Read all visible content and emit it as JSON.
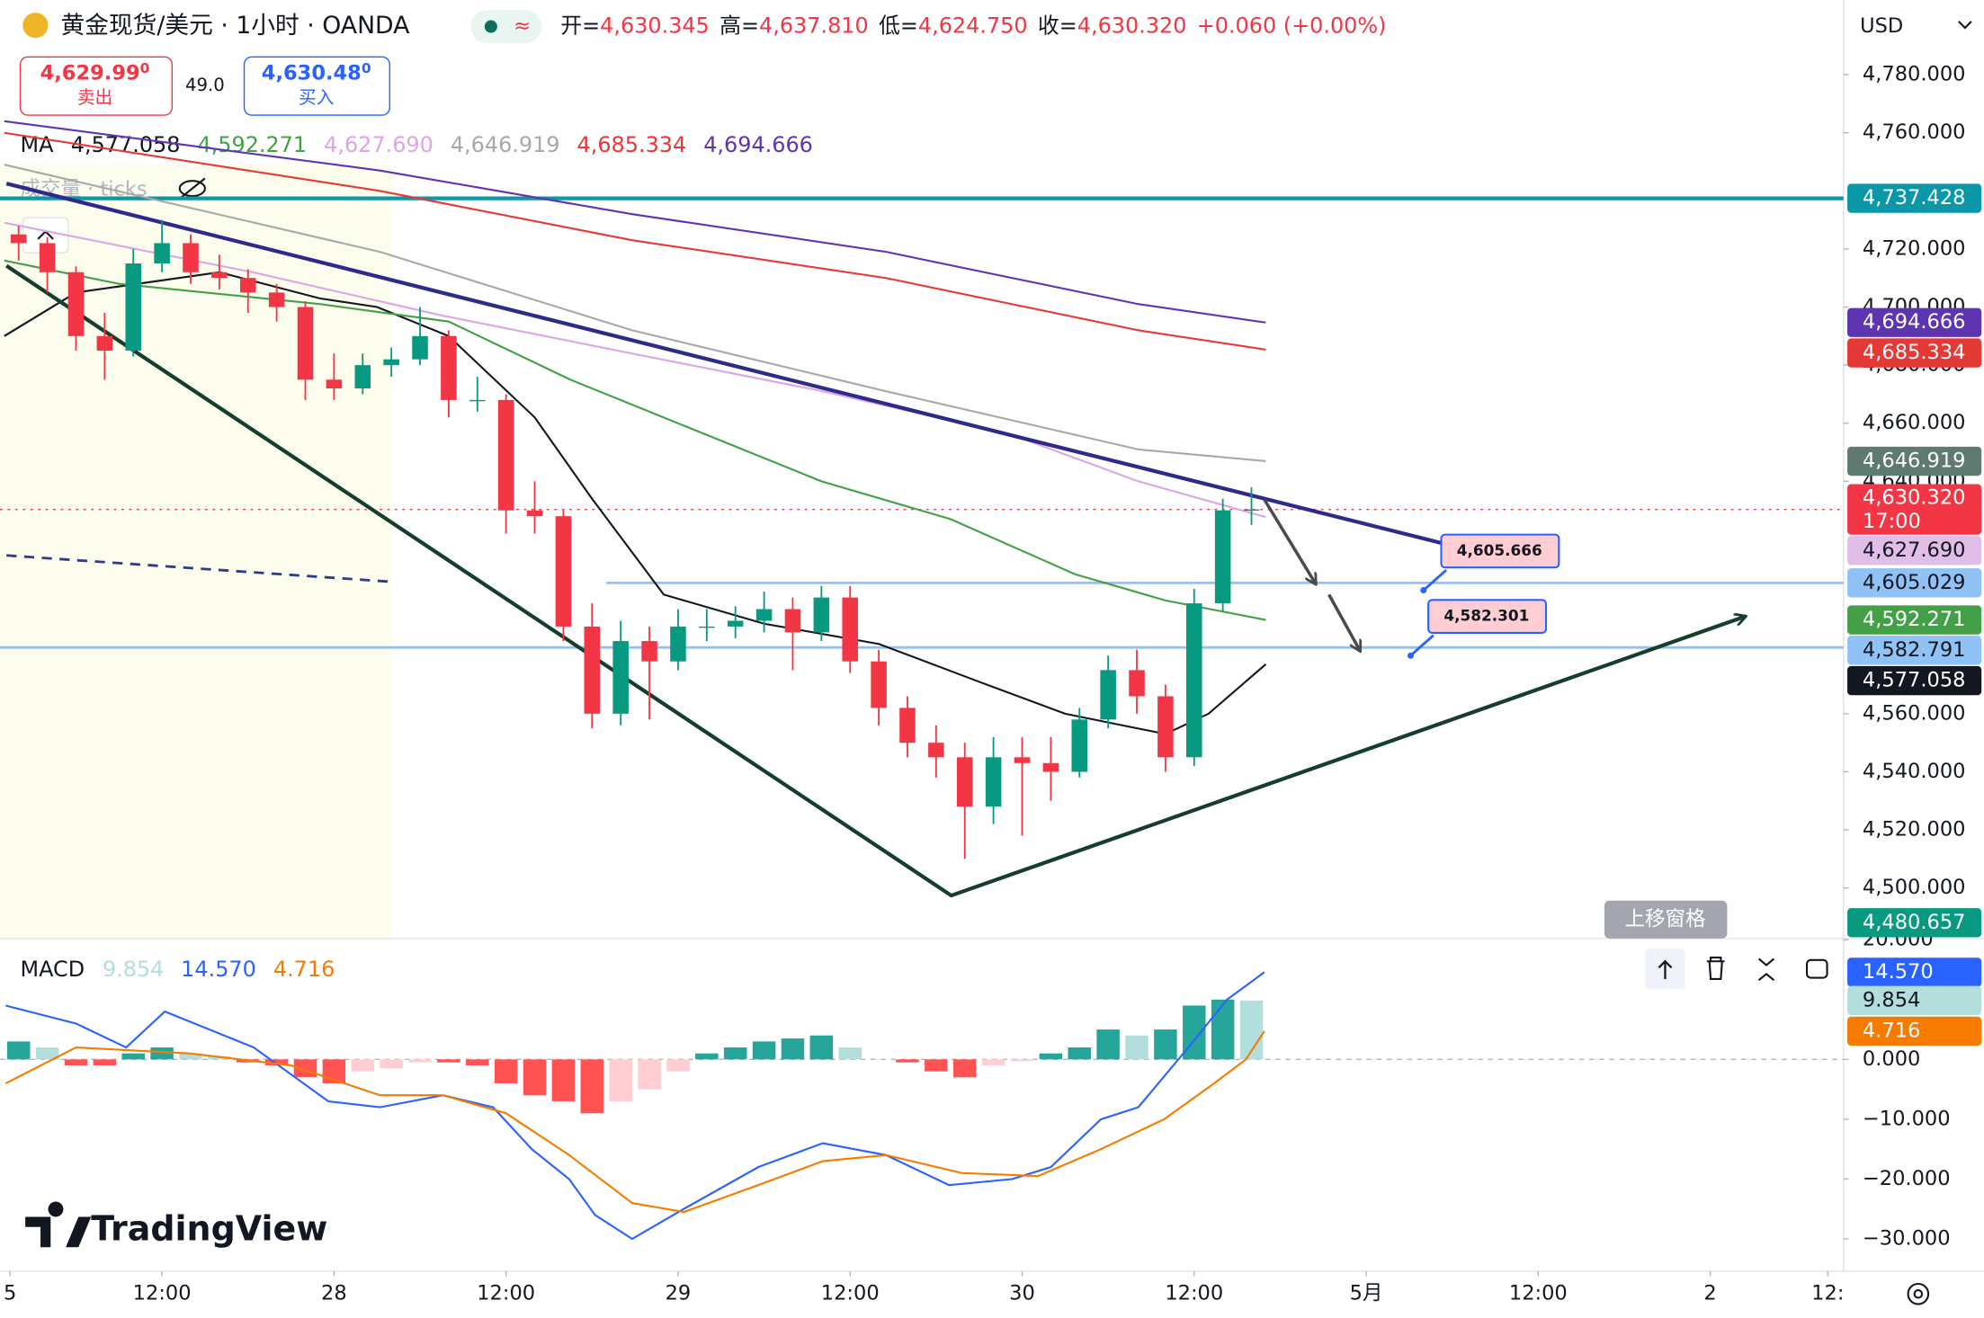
{
  "chart_data": {
    "type": "candlestick",
    "title": "黄金现货/美元 · 1小时 · OANDA",
    "legend": {
      "labels": [
        "开=",
        "高=",
        "低=",
        "收="
      ],
      "values": [
        "4,630.345",
        "4,637.810",
        "4,624.750",
        "4,630.320"
      ],
      "change": "+0.060 (+0.00%)",
      "color": "#f23645"
    },
    "quote": {
      "sell": "4,629.99",
      "sell_frac": "0",
      "sell_label": "卖出",
      "spread": "49.0",
      "buy": "4,630.48",
      "buy_frac": "0",
      "buy_label": "买入"
    },
    "currency": "USD",
    "volume_label": "成交量 · ticks",
    "up_color": "#089981",
    "down_color": "#f23645",
    "x": [
      2,
      4,
      6,
      8,
      10,
      12,
      14,
      16,
      18,
      20,
      22,
      24,
      26,
      28,
      30,
      32,
      34,
      36,
      38,
      40,
      42,
      44,
      46,
      48,
      50,
      52,
      54,
      56,
      58,
      60,
      62,
      64,
      66,
      68,
      70,
      72,
      74,
      76,
      78,
      80,
      82,
      84,
      86,
      88
    ],
    "candles": [
      [
        4725,
        4728,
        4716,
        4722
      ],
      [
        4722,
        4724,
        4705,
        4712
      ],
      [
        4712,
        4714,
        4685,
        4690
      ],
      [
        4690,
        4698,
        4675,
        4685
      ],
      [
        4685,
        4720,
        4683,
        4715
      ],
      [
        4715,
        4730,
        4712,
        4722
      ],
      [
        4722,
        4725,
        4708,
        4712
      ],
      [
        4712,
        4718,
        4706,
        4710
      ],
      [
        4710,
        4713,
        4698,
        4705
      ],
      [
        4705,
        4708,
        4695,
        4700
      ],
      [
        4700,
        4702,
        4668,
        4675
      ],
      [
        4675,
        4684,
        4668,
        4672
      ],
      [
        4672,
        4684,
        4670,
        4680
      ],
      [
        4680,
        4686,
        4676,
        4682
      ],
      [
        4682,
        4700,
        4680,
        4690
      ],
      [
        4690,
        4692,
        4662,
        4668
      ],
      [
        4668,
        4676,
        4664,
        4668
      ],
      [
        4668,
        4670,
        4622,
        4630
      ],
      [
        4630,
        4640,
        4622,
        4628
      ],
      [
        4628,
        4630,
        4585,
        4590
      ],
      [
        4590,
        4598,
        4555,
        4560
      ],
      [
        4560,
        4592,
        4556,
        4585
      ],
      [
        4585,
        4590,
        4558,
        4578
      ],
      [
        4578,
        4596,
        4575,
        4590
      ],
      [
        4590,
        4596,
        4585,
        4590
      ],
      [
        4590,
        4597,
        4586,
        4592
      ],
      [
        4592,
        4602,
        4588,
        4596
      ],
      [
        4596,
        4600,
        4575,
        4588
      ],
      [
        4588,
        4604,
        4585,
        4600
      ],
      [
        4600,
        4604,
        4574,
        4578
      ],
      [
        4578,
        4582,
        4556,
        4562
      ],
      [
        4562,
        4566,
        4545,
        4550
      ],
      [
        4550,
        4556,
        4538,
        4545
      ],
      [
        4545,
        4550,
        4510,
        4528
      ],
      [
        4528,
        4552,
        4522,
        4545
      ],
      [
        4545,
        4552,
        4518,
        4543
      ],
      [
        4543,
        4552,
        4530,
        4540
      ],
      [
        4540,
        4562,
        4538,
        4558
      ],
      [
        4558,
        4580,
        4555,
        4575
      ],
      [
        4575,
        4582,
        4560,
        4566
      ],
      [
        4566,
        4570,
        4540,
        4545
      ],
      [
        4545,
        4603,
        4542,
        4598
      ],
      [
        4598,
        4634,
        4595,
        4630
      ],
      [
        4630,
        4638,
        4625,
        4630.32
      ]
    ],
    "xlim": [
      0.7,
      129.3
    ],
    "xticks": [
      {
        "value": 1.4,
        "label": "5"
      },
      {
        "value": 12,
        "label": "12:00"
      },
      {
        "value": 24,
        "label": "28"
      },
      {
        "value": 36,
        "label": "12:00"
      },
      {
        "value": 48,
        "label": "29"
      },
      {
        "value": 60,
        "label": "12:00"
      },
      {
        "value": 72,
        "label": "30"
      },
      {
        "value": 84,
        "label": "12:00"
      },
      {
        "value": 96,
        "label": "5月"
      },
      {
        "value": 108,
        "label": "12:00"
      },
      {
        "value": 120,
        "label": "2"
      },
      {
        "value": 128.2,
        "label": "12:"
      }
    ],
    "ylim": [
      4482.6,
      4805.7
    ],
    "yticks": [
      {
        "value": 4500,
        "label": "4,500.000"
      },
      {
        "value": 4520,
        "label": "4,520.000"
      },
      {
        "value": 4540,
        "label": "4,540.000"
      },
      {
        "value": 4560,
        "label": "4,560.000"
      },
      {
        "value": 4640,
        "label": "4,640.000"
      },
      {
        "value": 4660,
        "label": "4,660.000"
      },
      {
        "value": 4680,
        "label": "4,680.000"
      },
      {
        "value": 4700,
        "label": "4,700.000"
      },
      {
        "value": 4720,
        "label": "4,720.000"
      },
      {
        "value": 4760,
        "label": "4,760.000"
      },
      {
        "value": 4780,
        "label": "4,780.000"
      }
    ],
    "grid": false,
    "ma": {
      "label": "MA",
      "series": [
        {
          "color": "#131722",
          "legend": "4,577.058",
          "x": [
            1,
            6,
            16,
            23,
            27,
            32,
            38,
            42,
            47,
            54,
            62,
            69,
            75,
            82,
            85,
            89
          ],
          "values": [
            4690,
            4705,
            4712,
            4703,
            4700,
            4690,
            4662,
            4634,
            4601,
            4591,
            4584,
            4571,
            4560,
            4553,
            4560,
            4577.058
          ]
        },
        {
          "color": "#43a047",
          "legend": "4,592.271",
          "x": [
            1,
            9,
            23,
            32,
            40.5,
            49,
            58,
            67,
            75.7,
            82,
            89
          ],
          "values": [
            4716,
            4708,
            4701,
            4695,
            4675,
            4658,
            4640,
            4627,
            4608,
            4599,
            4592.271
          ]
        },
        {
          "color": "#dba6e3",
          "legend": "4,627.690",
          "x": [
            1,
            18.3,
            31.6,
            44.8,
            58.1,
            71.3,
            80.1,
            89
          ],
          "values": [
            4729,
            4712,
            4697,
            4684,
            4671,
            4656,
            4640,
            4627.69
          ]
        },
        {
          "color": "#a8a8a8",
          "legend": "4,646.919",
          "x": [
            1,
            27.2,
            44.8,
            62.5,
            80.1,
            89
          ],
          "values": [
            4749,
            4719,
            4692,
            4671,
            4651,
            4646.919
          ]
        },
        {
          "color": "#e53935",
          "legend": "4,685.334",
          "x": [
            1,
            27.2,
            44.8,
            62.5,
            80.1,
            89
          ],
          "values": [
            4760,
            4740,
            4723,
            4710,
            4692,
            4685.334
          ]
        },
        {
          "color": "#5e35b1",
          "legend": "4,694.666",
          "x": [
            1,
            27.2,
            44.8,
            62.5,
            80.1,
            89
          ],
          "values": [
            4764,
            4747,
            4732,
            4719,
            4701,
            4694.666
          ]
        }
      ]
    },
    "price_labels": [
      {
        "value": 4737.428,
        "label": "4,737.428",
        "color": "#0a97a8",
        "text_color": "#ffffff"
      },
      {
        "value": 4694.666,
        "label": "4,694.666",
        "color": "#5e35b1",
        "text_color": "#ffffff"
      },
      {
        "value": 4685.334,
        "label": "4,685.334",
        "color": "#e53935",
        "text_color": "#ffffff"
      },
      {
        "value": 4646.919,
        "label": "4,646.919",
        "color": "#5f7a6f",
        "text_color": "#ffffff"
      },
      {
        "value": 4630.32,
        "label": "4,630.320",
        "sublabel": "17:00",
        "color": "#f23645",
        "text_color": "#ffffff"
      },
      {
        "value": 4627.69,
        "label": "4,627.690",
        "color": "#e1bee7",
        "text_color": "#131722"
      },
      {
        "value": 4605.029,
        "label": "4,605.029",
        "color": "#90c2f5",
        "text_color": "#131722"
      },
      {
        "value": 4592.271,
        "label": "4,592.271",
        "color": "#43a047",
        "text_color": "#ffffff"
      },
      {
        "value": 4582.791,
        "label": "4,582.791",
        "color": "#90c2f5",
        "text_color": "#131722"
      },
      {
        "value": 4577.058,
        "label": "4,577.058",
        "color": "#131722",
        "text_color": "#ffffff"
      },
      {
        "value": 4480.657,
        "label": "4,480.657",
        "color": "#089981",
        "text_color": "#ffffff"
      }
    ],
    "hlines": [
      {
        "value": 4737.428,
        "color": "#0a97a8",
        "width": 3,
        "x_start": 0.7
      },
      {
        "value": 4605.029,
        "color": "#90c2f5",
        "width": 2,
        "x_start": 43
      },
      {
        "value": 4582.791,
        "color": "#90c2f5",
        "width": 2,
        "x_start": 0.7
      },
      {
        "value": 4630.32,
        "color": "#f23645",
        "width": 1,
        "x_start": 0.7,
        "dash": "2 4"
      }
    ],
    "trendlines": [
      {
        "color": "#2e2a8a",
        "width": 3,
        "x": [
          1.15,
          102.2
        ],
        "values": [
          4742.5,
          4617.6
        ]
      },
      {
        "color": "#173d2f",
        "width": 3,
        "x": [
          1.15,
          67.06,
          122.5
        ],
        "values": [
          4714.2,
          4497.4,
          4593.6
        ],
        "arrow": true
      },
      {
        "color": "#2e3a8a",
        "width": 2,
        "dash": "8 6",
        "x": [
          1.15,
          28.06
        ],
        "values": [
          4614.5,
          4605.4
        ]
      },
      {
        "color": "#4a4a4a",
        "width": 2.5,
        "x": [
          88.9,
          92.5
        ],
        "values": [
          4633.7,
          4604.5
        ],
        "arrow": true
      },
      {
        "color": "#4a4a4a",
        "width": 2.5,
        "x": [
          93.4,
          95.6
        ],
        "values": [
          4601.0,
          4581.4
        ],
        "arrow": true
      }
    ],
    "callouts": [
      {
        "label": "4,605.666",
        "x": 100,
        "value": 4602.5
      },
      {
        "label": "4,582.301",
        "x": 99.1,
        "value": 4580.0
      }
    ],
    "macd": {
      "title": "MACD",
      "ylim": [
        -35.4,
        20.2
      ],
      "yticks": [
        {
          "value": 20,
          "label": "20.000"
        },
        {
          "value": 0,
          "label": "0.000"
        },
        {
          "value": -10,
          "label": "−10.000"
        },
        {
          "value": -20,
          "label": "−20.000"
        },
        {
          "value": -30,
          "label": "−30.000"
        }
      ],
      "histogram": {
        "legend": "9.854",
        "colors": {
          "up_rising": "#26a69a",
          "up_falling": "#b2dfdb",
          "down_falling": "#ff5252",
          "down_rising": "#ffcdd2"
        },
        "values": [
          3,
          2,
          -1,
          -1,
          1,
          2,
          1,
          0.5,
          -0.5,
          -1,
          -3,
          -4,
          -2,
          -1.5,
          -0.5,
          -0.5,
          -1,
          -4,
          -6,
          -7,
          -9,
          -7,
          -5,
          -2,
          1,
          2,
          3,
          3.5,
          4,
          2,
          0,
          -0.5,
          -2,
          -3,
          -1,
          -0.3,
          1,
          2,
          5,
          4,
          5,
          9,
          10,
          9.854
        ]
      },
      "series": [
        {
          "color": "#2962ff",
          "legend": "14.570",
          "x": [
            1.1,
            6,
            9.5,
            12.2,
            18.4,
            23.6,
            27.2,
            31.6,
            35.1,
            37.8,
            40.4,
            42.2,
            44.8,
            48.4,
            53.6,
            58.1,
            62.5,
            66.9,
            71.3,
            74,
            77.5,
            80.1,
            83.6,
            86.3,
            88.9
          ],
          "values": [
            9,
            6,
            2,
            8,
            2,
            -7,
            -8,
            -6,
            -8,
            -15,
            -20,
            -26,
            -30,
            -25,
            -18,
            -14,
            -16,
            -21,
            -20,
            -18,
            -10,
            -8,
            2,
            10,
            14.57
          ]
        },
        {
          "color": "#f57c00",
          "legend": "4.716",
          "x": [
            1.1,
            6,
            13.9,
            21,
            27.2,
            31.6,
            36,
            40.4,
            44.8,
            48.4,
            53.6,
            58.1,
            62.5,
            67.8,
            73.1,
            77.5,
            81.9,
            85.4,
            87.6,
            88.9
          ],
          "values": [
            -4,
            2,
            1,
            -1,
            -6,
            -6,
            -9,
            -16,
            -24,
            -25.5,
            -21,
            -17,
            -16,
            -19,
            -19.5,
            -15,
            -10,
            -4,
            0,
            4.716
          ]
        }
      ],
      "badges": [
        {
          "value": 14.57,
          "label": "14.570",
          "color": "#2962ff",
          "text_color": "#ffffff"
        },
        {
          "value": 9.854,
          "label": "9.854",
          "color": "#b2dfdb",
          "text_color": "#131722"
        },
        {
          "value": 4.716,
          "label": "4.716",
          "color": "#f57c00",
          "text_color": "#ffffff"
        }
      ]
    },
    "pane_button": "上移窗格",
    "brand": "TradingView"
  }
}
